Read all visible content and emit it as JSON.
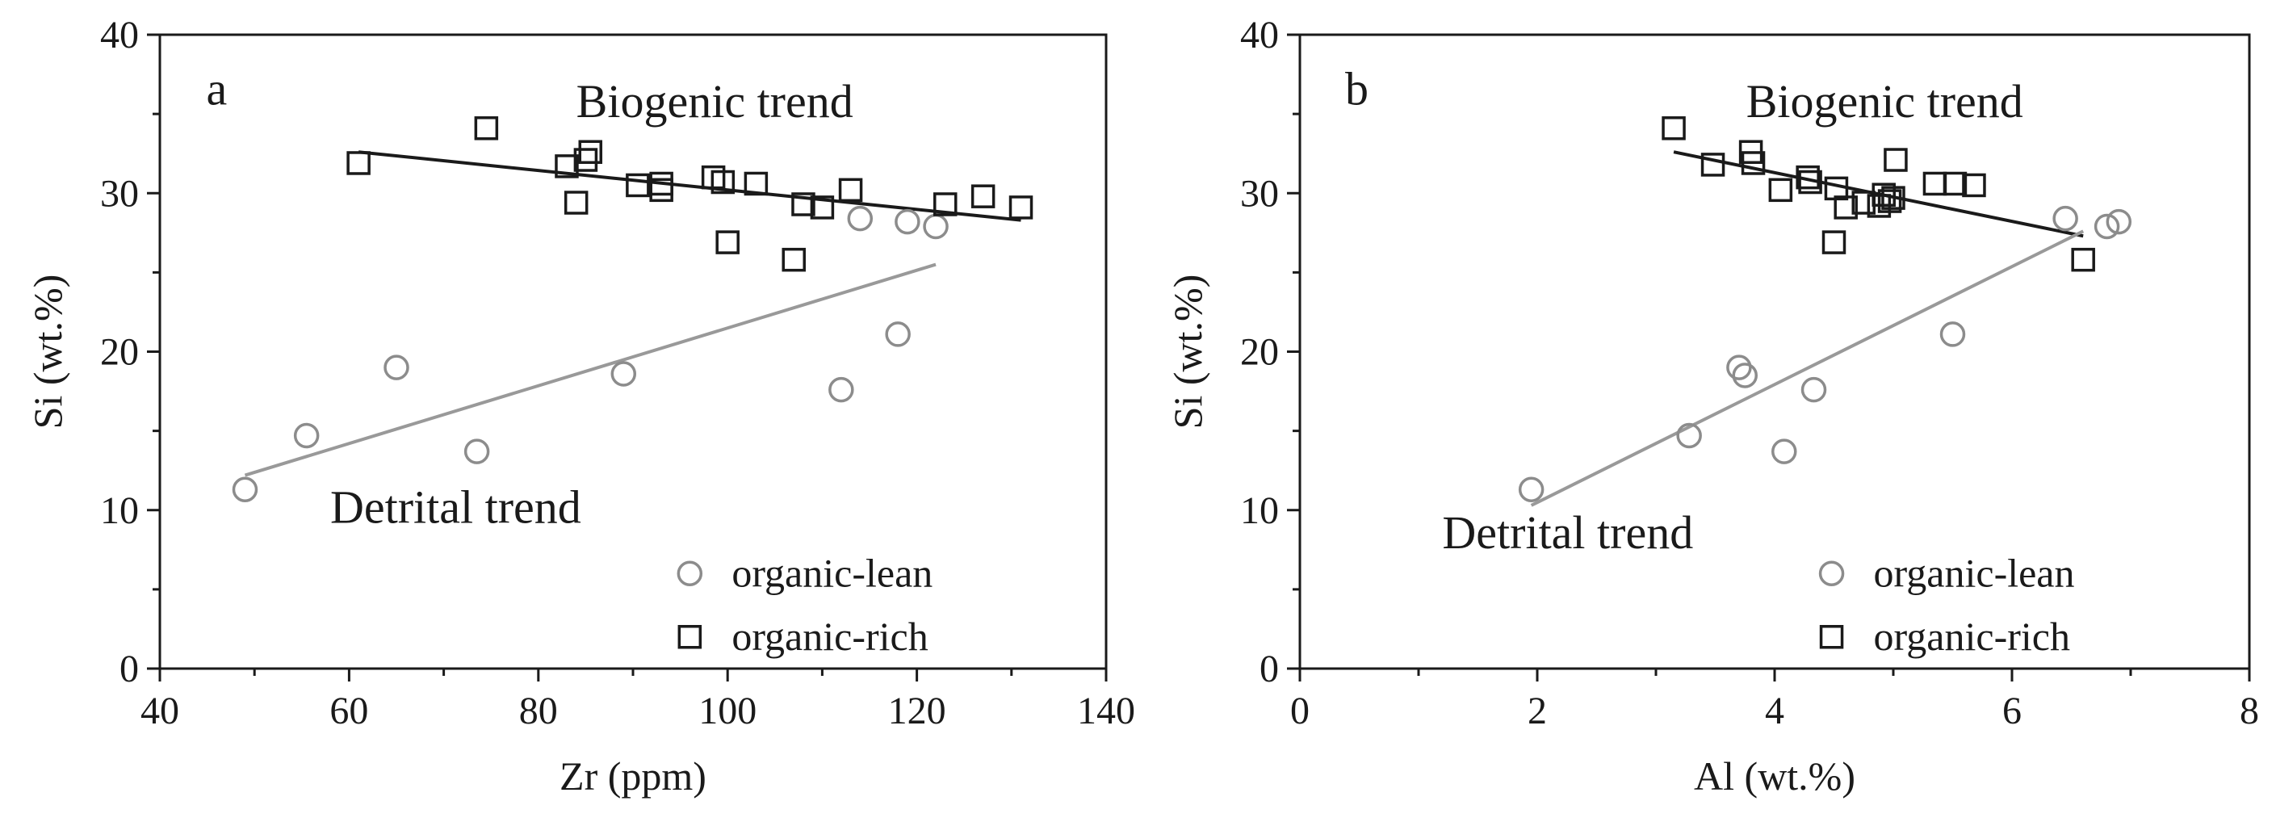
{
  "chart_data": [
    {
      "type": "scatter",
      "panel_label": "a",
      "xlabel": "Zr (ppm)",
      "ylabel": "Si (wt.%)",
      "xlim": [
        40,
        140
      ],
      "ylim": [
        0,
        40
      ],
      "x_ticks": [
        40,
        60,
        80,
        100,
        120,
        140
      ],
      "y_ticks": [
        0,
        10,
        20,
        30,
        40
      ],
      "grid": false,
      "legend_position": "bottom-right",
      "series": [
        {
          "name": "organic-lean",
          "marker": "circle",
          "color": "#8c8c8c",
          "points": [
            [
              49,
              11.3
            ],
            [
              55.5,
              14.7
            ],
            [
              65,
              19.0
            ],
            [
              73.5,
              13.7
            ],
            [
              89,
              18.6
            ],
            [
              112,
              17.6
            ],
            [
              114,
              28.4
            ],
            [
              118,
              21.1
            ],
            [
              119,
              28.2
            ],
            [
              122,
              27.9
            ]
          ]
        },
        {
          "name": "organic-rich",
          "marker": "square",
          "color": "#1a1a1a",
          "points": [
            [
              61,
              31.9
            ],
            [
              74.5,
              34.1
            ],
            [
              83,
              31.7
            ],
            [
              84,
              29.4
            ],
            [
              85,
              32.1
            ],
            [
              85.5,
              32.6
            ],
            [
              90.5,
              30.5
            ],
            [
              93,
              30.2
            ],
            [
              93,
              30.6
            ],
            [
              98.5,
              31.0
            ],
            [
              99.5,
              30.7
            ],
            [
              100,
              26.9
            ],
            [
              103,
              30.6
            ],
            [
              107,
              25.8
            ],
            [
              108,
              29.3
            ],
            [
              110,
              29.1
            ],
            [
              113,
              30.2
            ],
            [
              123,
              29.3
            ],
            [
              127,
              29.8
            ],
            [
              131,
              29.1
            ]
          ]
        }
      ],
      "trend_lines": [
        {
          "label": "Biogenic trend",
          "color": "#1a1a1a",
          "from": [
            61,
            32.6
          ],
          "to": [
            131,
            28.3
          ]
        },
        {
          "label": "Detrital trend",
          "color": "#999999",
          "from": [
            49,
            12.2
          ],
          "to": [
            122,
            25.5
          ]
        }
      ]
    },
    {
      "type": "scatter",
      "panel_label": "b",
      "xlabel": "Al (wt.%)",
      "ylabel": "Si (wt.%)",
      "xlim": [
        0,
        8
      ],
      "ylim": [
        0,
        40
      ],
      "x_ticks": [
        0,
        2,
        4,
        6,
        8
      ],
      "y_ticks": [
        0,
        10,
        20,
        30,
        40
      ],
      "grid": false,
      "legend_position": "bottom-right",
      "series": [
        {
          "name": "organic-lean",
          "marker": "circle",
          "color": "#8c8c8c",
          "points": [
            [
              1.95,
              11.3
            ],
            [
              3.28,
              14.7
            ],
            [
              3.7,
              19.0
            ],
            [
              3.75,
              18.5
            ],
            [
              4.08,
              13.7
            ],
            [
              4.33,
              17.6
            ],
            [
              5.5,
              21.1
            ],
            [
              6.45,
              28.4
            ],
            [
              6.8,
              27.9
            ],
            [
              6.9,
              28.2
            ]
          ]
        },
        {
          "name": "organic-rich",
          "marker": "square",
          "color": "#1a1a1a",
          "points": [
            [
              3.15,
              34.1
            ],
            [
              3.48,
              31.8
            ],
            [
              3.8,
              32.6
            ],
            [
              3.82,
              31.9
            ],
            [
              4.05,
              30.2
            ],
            [
              4.28,
              31.0
            ],
            [
              4.3,
              30.7
            ],
            [
              4.5,
              26.9
            ],
            [
              4.52,
              30.3
            ],
            [
              4.6,
              29.1
            ],
            [
              4.75,
              29.4
            ],
            [
              4.88,
              29.2
            ],
            [
              4.92,
              29.9
            ],
            [
              4.97,
              29.5
            ],
            [
              5.0,
              29.7
            ],
            [
              5.02,
              32.1
            ],
            [
              5.35,
              30.6
            ],
            [
              5.52,
              30.6
            ],
            [
              5.68,
              30.5
            ],
            [
              6.6,
              25.8
            ]
          ]
        }
      ],
      "trend_lines": [
        {
          "label": "Biogenic trend",
          "color": "#1a1a1a",
          "from": [
            3.15,
            32.6
          ],
          "to": [
            6.6,
            27.3
          ]
        },
        {
          "label": "Detrital trend",
          "color": "#999999",
          "from": [
            1.95,
            10.3
          ],
          "to": [
            6.6,
            27.6
          ]
        }
      ]
    }
  ]
}
